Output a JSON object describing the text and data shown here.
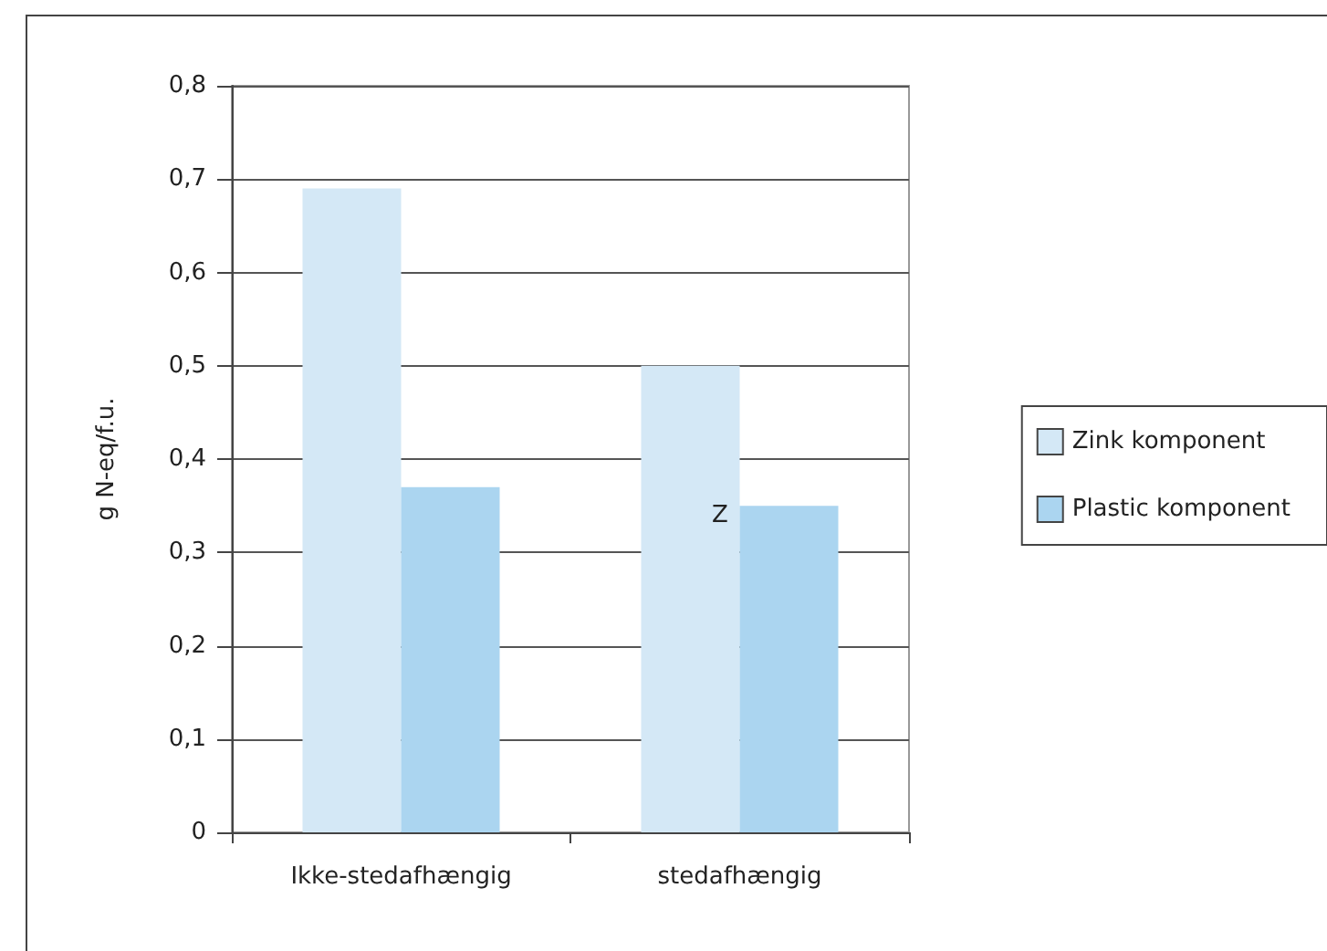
{
  "chart_data": {
    "type": "bar",
    "ylabel": "g N-eq/f.u.",
    "categories": [
      "Ikke-stedafhængig",
      "stedafhængig"
    ],
    "series": [
      {
        "name": "Zink komponent",
        "color": "#d4e8f6",
        "values": [
          0.69,
          0.5
        ]
      },
      {
        "name": "Plastic komponent",
        "color": "#abd5f0",
        "values": [
          0.37,
          0.35
        ]
      }
    ],
    "ylim": [
      0,
      0.8
    ],
    "yticks": [
      {
        "value": 0,
        "label": "0"
      },
      {
        "value": 0.1,
        "label": "0,1"
      },
      {
        "value": 0.2,
        "label": "0,2"
      },
      {
        "value": 0.3,
        "label": "0,3"
      },
      {
        "value": 0.4,
        "label": "0,4"
      },
      {
        "value": 0.5,
        "label": "0,5"
      },
      {
        "value": 0.6,
        "label": "0,6"
      },
      {
        "value": 0.7,
        "label": "0,7"
      },
      {
        "value": 0.8,
        "label": "0,8"
      }
    ],
    "grid": "y",
    "legend": "right",
    "annotations": [
      "Z"
    ]
  }
}
